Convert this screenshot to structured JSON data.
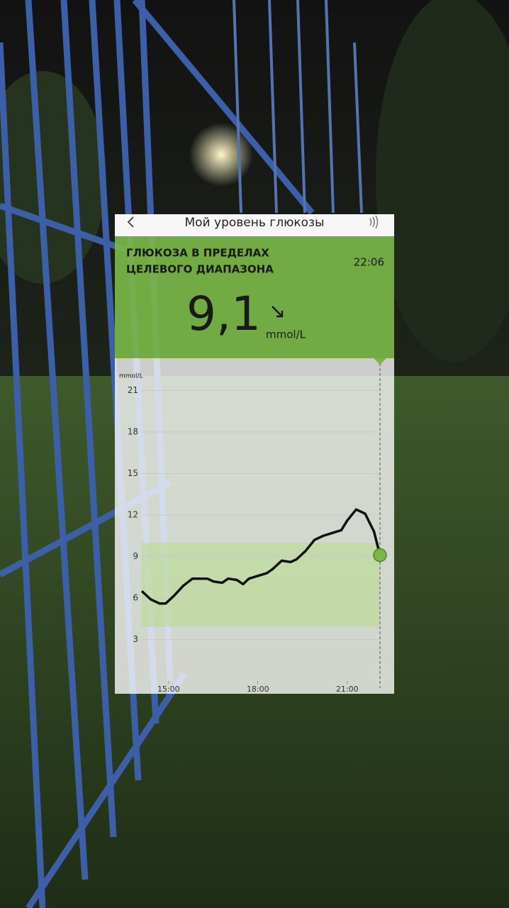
{
  "header": {
    "title": "Мой уровень глюкозы"
  },
  "status": {
    "line1": "ГЛЮКОЗА В ПРЕДЕЛАХ",
    "line2": "ЦЕЛЕВОГО ДИАПАЗОНА",
    "time": "22:06",
    "value": "9,1",
    "unit": "mmol/L"
  },
  "chart_data": {
    "type": "line",
    "y_label": "mmol/L",
    "x": [
      14.1,
      14.4,
      14.7,
      14.9,
      15.2,
      15.5,
      15.8,
      16.1,
      16.3,
      16.5,
      16.8,
      17.0,
      17.3,
      17.5,
      17.7,
      18.0,
      18.3,
      18.5,
      18.8,
      19.1,
      19.3,
      19.6,
      19.9,
      20.2,
      20.5,
      20.8,
      21.0,
      21.3,
      21.6,
      21.9,
      22.1
    ],
    "values": [
      6.5,
      5.9,
      5.6,
      5.6,
      6.2,
      6.9,
      7.4,
      7.4,
      7.4,
      7.2,
      7.1,
      7.4,
      7.3,
      7.0,
      7.4,
      7.6,
      7.8,
      8.1,
      8.7,
      8.6,
      8.8,
      9.4,
      10.2,
      10.5,
      10.7,
      10.9,
      11.6,
      12.4,
      12.1,
      10.8,
      9.1
    ],
    "color": "#111111",
    "marker_color": "#7ab648",
    "target_range": [
      3.9,
      10
    ],
    "target_color": "#b9dc8f",
    "xlim": [
      14.1,
      22.1
    ],
    "ylim": [
      0,
      23
    ],
    "xticks": [
      {
        "value": 15,
        "label": "15:00"
      },
      {
        "value": 18,
        "label": "18:00"
      },
      {
        "value": 21,
        "label": "21:00"
      }
    ],
    "yticks": [
      3,
      6,
      9,
      12,
      15,
      18,
      21
    ],
    "grid": true
  }
}
